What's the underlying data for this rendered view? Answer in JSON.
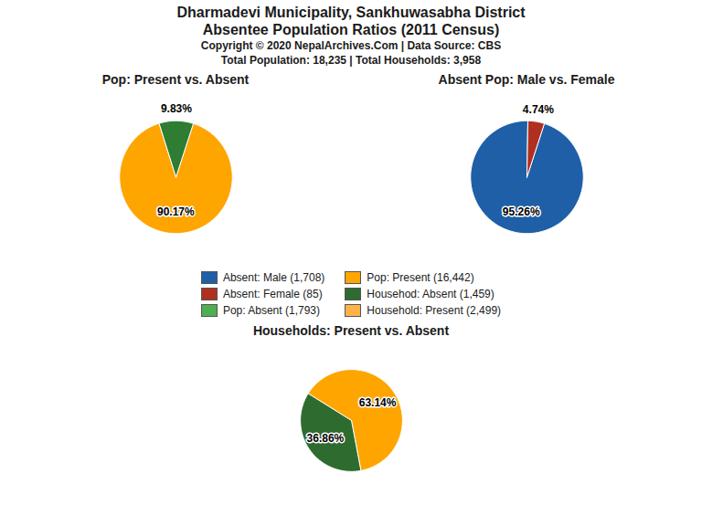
{
  "title": "Dharmadevi Municipality, Sankhuwasabha District",
  "subtitle": "Absentee Population Ratios (2011 Census)",
  "annotations": [
    "Copyright © 2020 NepalArchives.Com | Data Source: CBS",
    "Total Population: 18,235 | Total Households: 3,958"
  ],
  "legend_items": [
    {
      "label": "Absent: Male (1,708)",
      "color": "#1E5FA8"
    },
    {
      "label": "Absent: Female (85)",
      "color": "#B03020"
    },
    {
      "label": "Pop: Absent (1,793)",
      "color": "#4CAF50"
    },
    {
      "label": "Pop: Present (16,442)",
      "color": "#FFA500"
    },
    {
      "label": "Househod: Absent (1,459)",
      "color": "#2E6B2E"
    },
    {
      "label": "Household: Present (2,499)",
      "color": "#FFB347"
    }
  ],
  "chart_data": [
    {
      "type": "pie",
      "title": "Pop: Present vs. Absent",
      "values": [
        90.17,
        9.83
      ],
      "value_labels": [
        "90.17%",
        "9.83%"
      ],
      "data_labels": true,
      "colors": [
        "#FFA500",
        "#2E7D32"
      ]
    },
    {
      "type": "pie",
      "title": "Absent Pop: Male vs. Female",
      "values": [
        95.26,
        4.74
      ],
      "value_labels": [
        "95.26%",
        "4.74%"
      ],
      "data_labels": true,
      "colors": [
        "#1E5FA8",
        "#B03020"
      ]
    },
    {
      "type": "pie",
      "title": "Households: Present vs. Absent",
      "values": [
        63.14,
        36.86
      ],
      "value_labels": [
        "63.14%",
        "36.86%"
      ],
      "data_labels": true,
      "colors": [
        "#FFA500",
        "#2E6B2E"
      ]
    }
  ]
}
